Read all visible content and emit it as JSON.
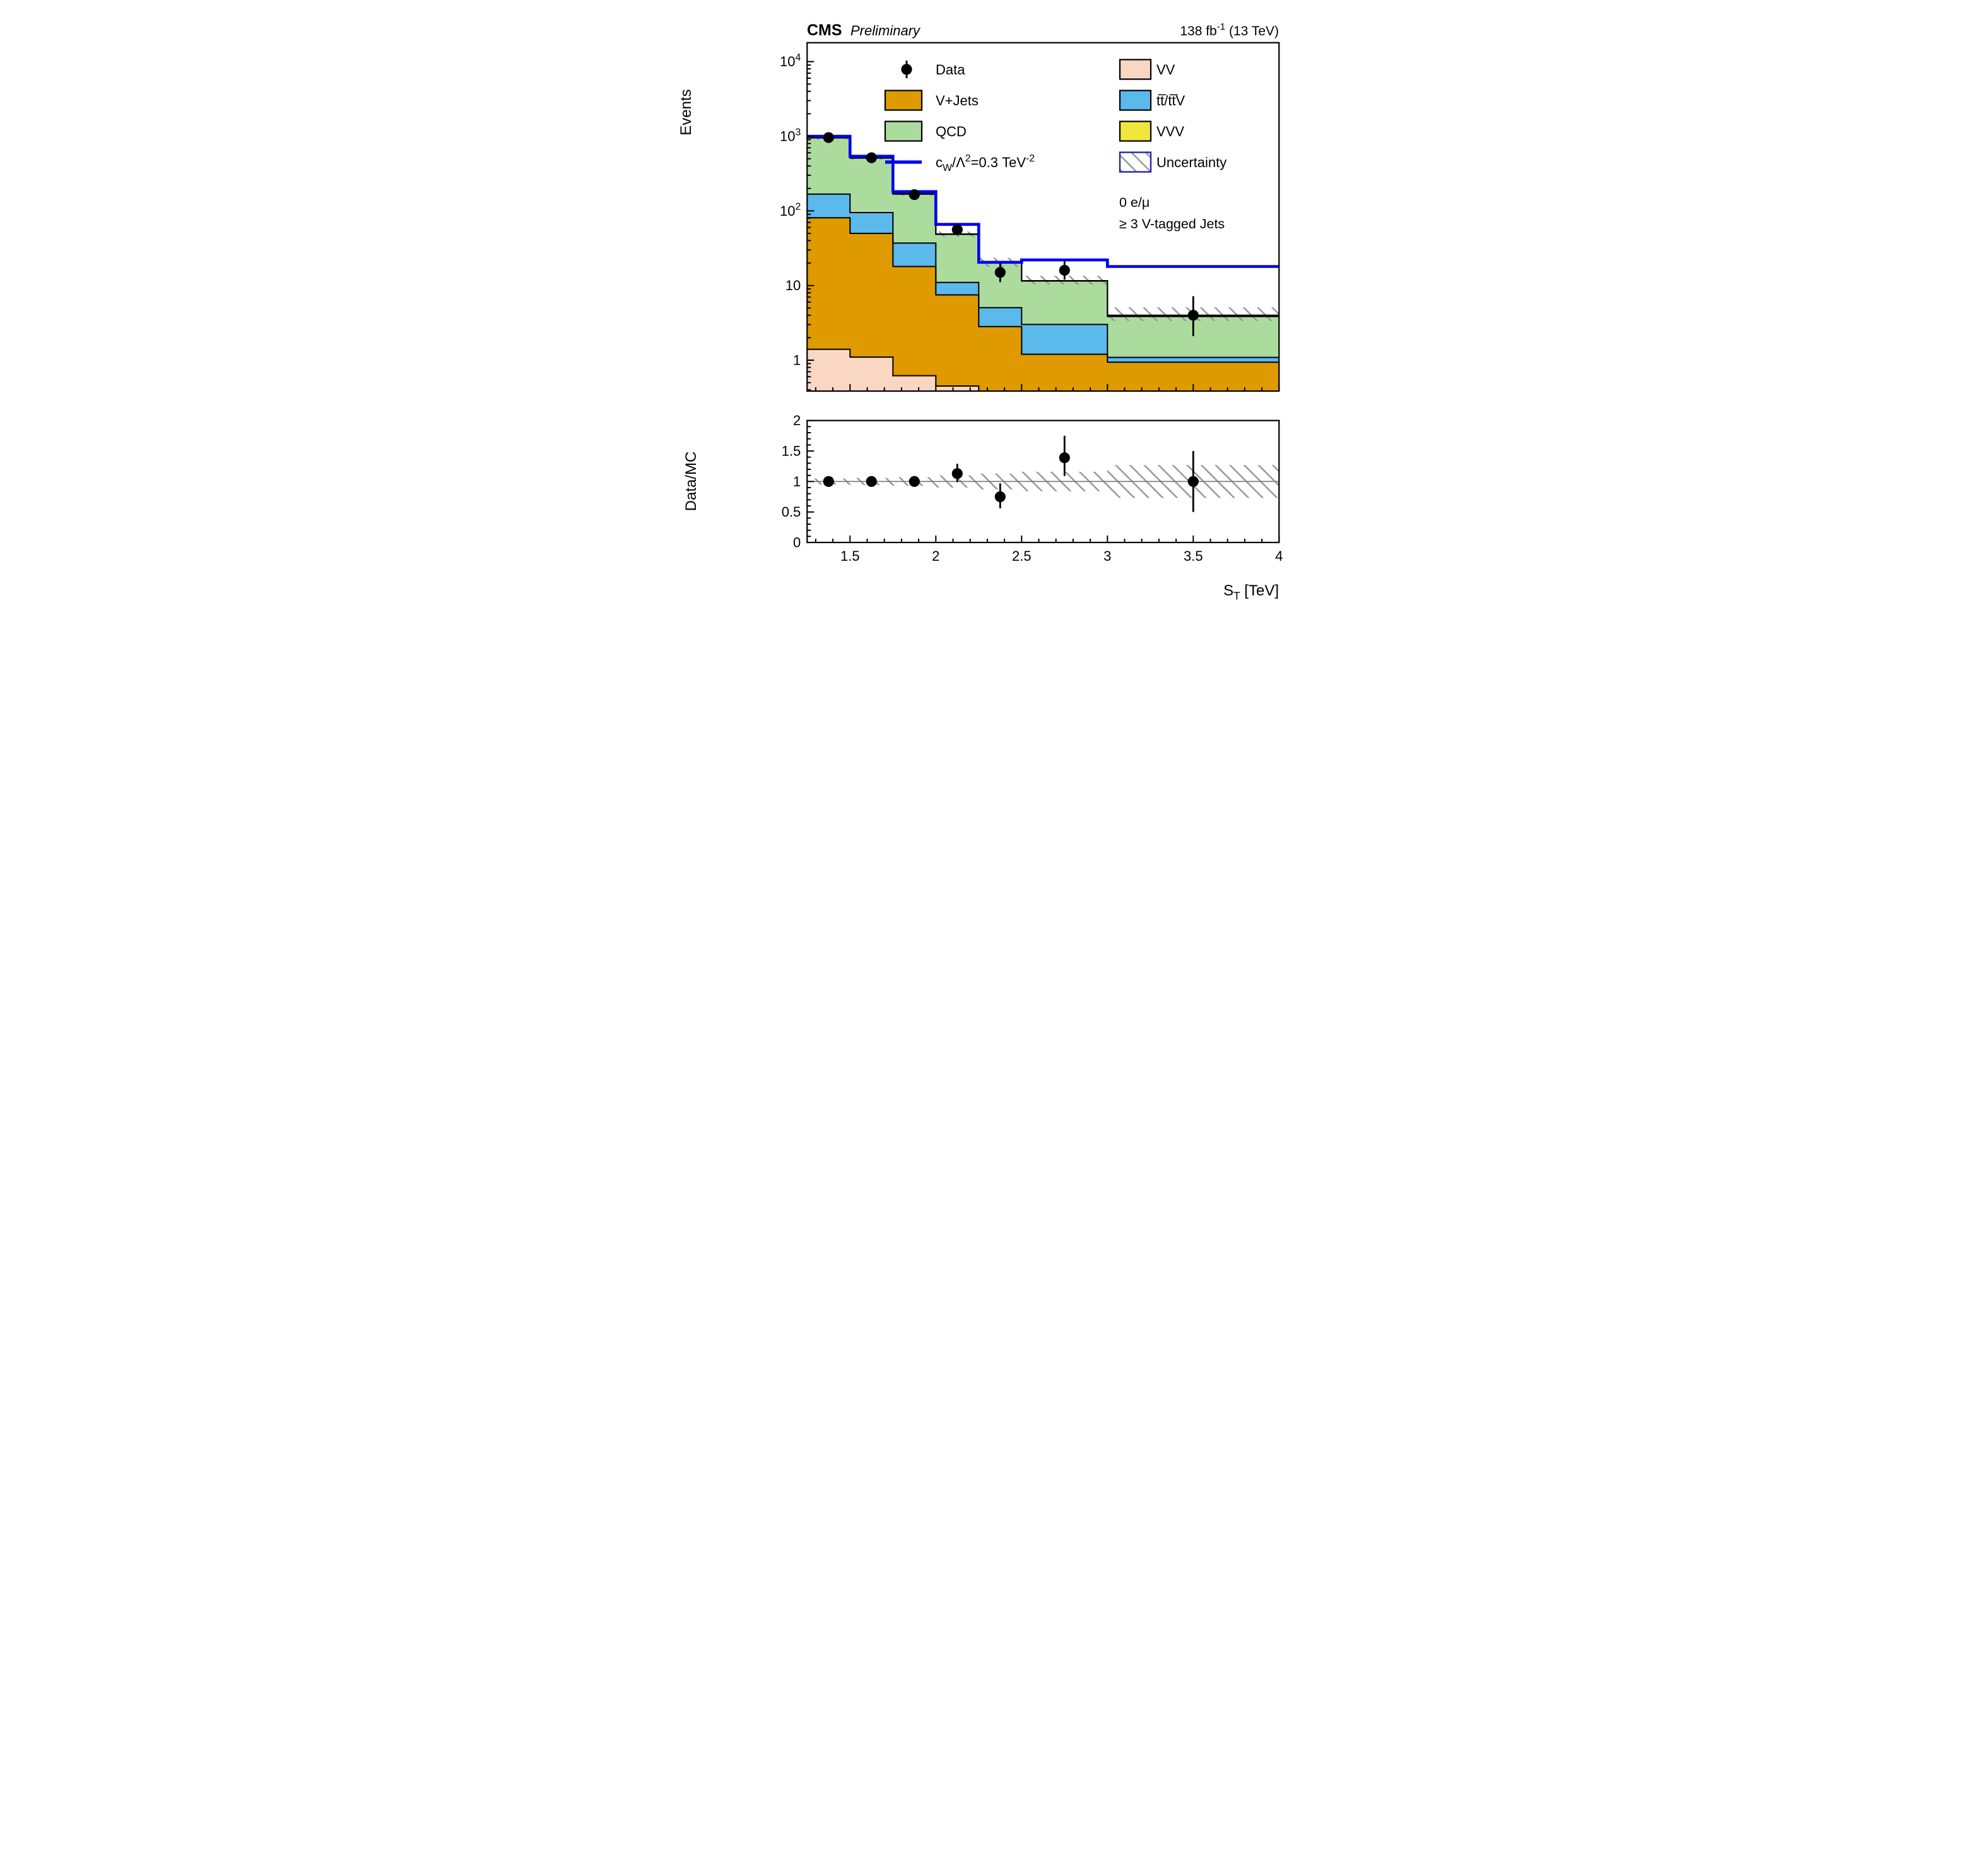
{
  "header": {
    "cms": "CMS",
    "preliminary": "Preliminary",
    "lumi_parts": [
      {
        "t": "138 fb"
      },
      {
        "t": "-1",
        "sup": true
      },
      {
        "t": " (13 TeV)"
      }
    ]
  },
  "axes": {
    "main_y_title": "Events",
    "ratio_y_title": "Data/MC",
    "x_title_parts": [
      {
        "t": "S"
      },
      {
        "t": "T",
        "sub": true
      },
      {
        "t": " [TeV]"
      }
    ],
    "x_tick_labels": [
      "1.5",
      "2",
      "2.5",
      "3",
      "3.5",
      "4"
    ],
    "ratio_y_tick_labels": [
      "0",
      "0.5",
      "1",
      "1.5",
      "2"
    ]
  },
  "annotations": {
    "line1": "0 e/μ",
    "line2": "≥ 3 V-tagged Jets"
  },
  "legend": {
    "left": [
      {
        "type": "data-marker",
        "label": "Data"
      },
      {
        "type": "box",
        "color": "#df9a00",
        "label": "V+Jets"
      },
      {
        "type": "box",
        "color": "#abdc9e",
        "label": "QCD"
      },
      {
        "type": "line",
        "color": "#0000ee",
        "label_parts": [
          {
            "t": "c"
          },
          {
            "t": "W",
            "sub": true
          },
          {
            "t": "/Λ"
          },
          {
            "t": "2",
            "sup": true
          },
          {
            "t": "=0.3 TeV"
          },
          {
            "t": "-2",
            "sup": true
          }
        ]
      }
    ],
    "right": [
      {
        "type": "box",
        "color": "#fad7c3",
        "label": "VV"
      },
      {
        "type": "box",
        "color": "#5bb9ec",
        "label": "tt̅/tt̅V"
      },
      {
        "type": "box",
        "color": "#f0e63c",
        "label": "VVV"
      },
      {
        "type": "hatch-box",
        "border": "#2222aa",
        "label": "Uncertainty"
      }
    ]
  },
  "chart_data": {
    "type": "bar",
    "subtype": "stacked-step-log-histogram-with-ratio",
    "title": "CMS Preliminary 138 fb-1 (13 TeV)",
    "xlabel": "S_T [TeV]",
    "ylabel": "Events",
    "ratio_ylabel": "Data/MC",
    "x_edges": [
      1.25,
      1.5,
      1.75,
      2.0,
      2.25,
      2.5,
      3.0,
      4.0
    ],
    "x_range": [
      1.25,
      4.0
    ],
    "main_y_log_range": [
      0.39,
      18000
    ],
    "ratio_y_range": [
      0,
      2
    ],
    "legend_position": "top-inside",
    "grid": false,
    "series": [
      {
        "name": "VV",
        "color": "#fad7c3",
        "cumulative_tops": [
          1.4,
          1.1,
          0.62,
          0.45,
          0.32,
          0.24,
          0.18
        ]
      },
      {
        "name": "V+Jets",
        "color": "#df9a00",
        "cumulative_tops": [
          81,
          50,
          18,
          7.5,
          2.82,
          1.2,
          0.94
        ]
      },
      {
        "name": "tt/ttV",
        "color": "#5bb9ec",
        "cumulative_tops": [
          168,
          95,
          37,
          11,
          5.06,
          3.01,
          1.09
        ]
      },
      {
        "name": "QCD",
        "color": "#abdc9e",
        "cumulative_tops": [
          950,
          510,
          168,
          48.5,
          20.0,
          11.5,
          3.85
        ]
      },
      {
        "name": "VVV",
        "color": "#f0e63c",
        "cumulative_tops": [
          958,
          514,
          170,
          49.0,
          20.2,
          11.6,
          4.0
        ]
      }
    ],
    "uncertainty_lo": [
      905,
      487,
      160,
      45,
      17.8,
      10.3,
      3.35
    ],
    "uncertainty_hi": [
      1005,
      540,
      180,
      53,
      23.5,
      13.5,
      5.1
    ],
    "signal": {
      "name": "cW/Lambda2=0.3 TeV-2",
      "color": "#0000ee",
      "values": [
        1000,
        540,
        181,
        66,
        20.5,
        22,
        18
      ]
    },
    "data_points": {
      "x": [
        1.375,
        1.625,
        1.875,
        2.125,
        2.375,
        2.75,
        3.5
      ],
      "y": [
        960,
        515,
        165,
        56,
        15,
        16,
        4.0
      ],
      "err_up": [
        31.5,
        23.7,
        13.9,
        8.5,
        5.0,
        5.1,
        3.2
      ],
      "err_dn": [
        30.5,
        22.7,
        12.8,
        7.5,
        3.9,
        4.0,
        1.9
      ]
    },
    "ratio": {
      "values": [
        1.0,
        1.0,
        1.0,
        1.13,
        0.75,
        1.39,
        1.0
      ],
      "err_up": [
        0.04,
        0.05,
        0.09,
        0.16,
        0.22,
        0.36,
        0.5
      ],
      "err_dn": [
        0.04,
        0.05,
        0.08,
        0.14,
        0.19,
        0.3,
        0.5
      ],
      "band_halfwidth": [
        0.05,
        0.06,
        0.07,
        0.1,
        0.13,
        0.16,
        0.27
      ]
    },
    "hatch_color": "#949494"
  }
}
